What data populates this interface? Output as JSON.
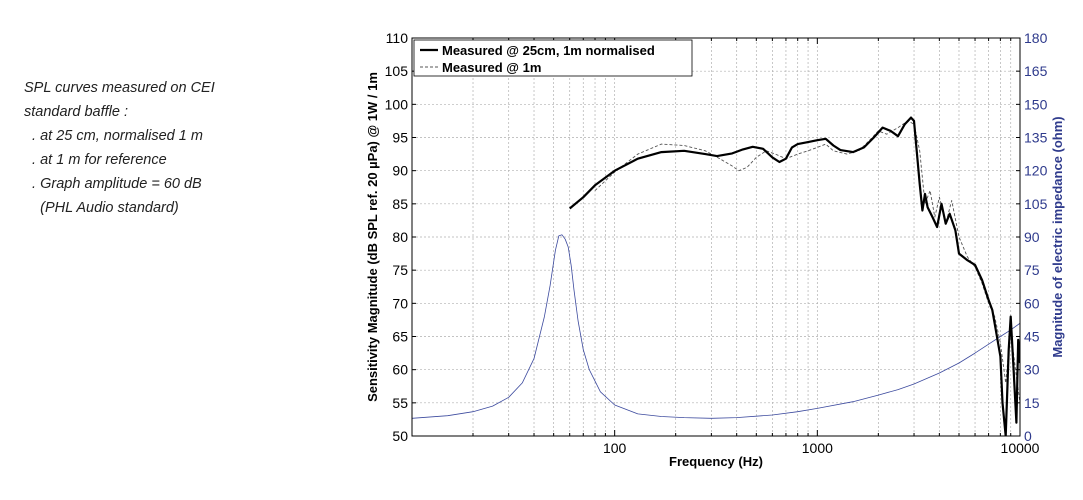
{
  "note": {
    "lines": [
      "SPL curves measured on CEI",
      "standard baffle :",
      "  . at 25 cm, normalised 1 m",
      "  . at 1 m for reference",
      "  . Graph amplitude = 60 dB",
      "    (PHL Audio standard)"
    ]
  },
  "chart_data": {
    "type": "line",
    "xlabel": "Frequency (Hz)",
    "ylabel": "Sensitivity Magnitude (dB SPL ref. 20 µPa) @ 1W / 1m",
    "ylabel_right": "Magnitude of electric impedance (ohm)",
    "x_scale": "log",
    "xlim": [
      10,
      10000
    ],
    "ylim": [
      50,
      110
    ],
    "ylim_right": [
      0,
      180
    ],
    "x_ticks": [
      "100",
      "1000",
      "10000"
    ],
    "y_ticks": [
      "50",
      "55",
      "60",
      "65",
      "70",
      "75",
      "80",
      "85",
      "90",
      "95",
      "100",
      "105",
      "110"
    ],
    "y_ticks_right": [
      "0",
      "15",
      "30",
      "45",
      "60",
      "75",
      "90",
      "105",
      "120",
      "135",
      "150",
      "165",
      "180"
    ],
    "grid": true,
    "legend_position": "top-left",
    "colors": {
      "measured_25cm": "#000000",
      "measured_1m": "#555555",
      "impedance": "#3c4a9e",
      "right_axis": "#2e3a8c"
    },
    "series": [
      {
        "name": "Measured @ 25cm, 1m normalised",
        "axis": "left",
        "style": "solid",
        "x": [
          60,
          70,
          80,
          100,
          130,
          170,
          220,
          280,
          320,
          380,
          430,
          480,
          540,
          600,
          650,
          700,
          750,
          800,
          900,
          1000,
          1100,
          1200,
          1300,
          1500,
          1700,
          1900,
          2100,
          2300,
          2500,
          2700,
          2900,
          3000,
          3200,
          3300,
          3400,
          3500,
          3700,
          3900,
          4100,
          4300,
          4500,
          4800,
          5000,
          5500,
          6000,
          6500,
          7000,
          7300,
          7600,
          8000,
          8200,
          8500,
          8800,
          9000,
          9300,
          9600,
          9800,
          10000
        ],
        "y": [
          84.3,
          86.0,
          87.8,
          90.0,
          91.8,
          92.8,
          93.0,
          92.5,
          92.2,
          92.6,
          93.2,
          93.6,
          93.3,
          92.0,
          91.3,
          91.8,
          93.5,
          94.0,
          94.3,
          94.6,
          94.8,
          93.8,
          93.1,
          92.8,
          93.5,
          95.0,
          96.5,
          96.0,
          95.2,
          97.0,
          98.0,
          97.5,
          88.0,
          84.0,
          86.5,
          84.5,
          83.0,
          81.5,
          85.0,
          82.0,
          83.5,
          81.0,
          77.5,
          76.5,
          75.8,
          73.5,
          70.5,
          69.0,
          66.0,
          62.0,
          55.0,
          50.0,
          63.0,
          68.0,
          60.0,
          52.0,
          64.5,
          61.0
        ]
      },
      {
        "name": "Measured @ 1m",
        "axis": "left",
        "style": "dashed",
        "x": [
          80,
          100,
          130,
          170,
          220,
          280,
          330,
          380,
          410,
          450,
          500,
          560,
          620,
          700,
          800,
          900,
          1000,
          1100,
          1200,
          1400,
          1600,
          1800,
          2000,
          2200,
          2500,
          2800,
          3000,
          3200,
          3400,
          3600,
          3800,
          4000,
          4300,
          4600,
          5000,
          5500,
          6000,
          6500,
          7000,
          7500,
          8000,
          8500,
          9000,
          9500,
          10000
        ],
        "y": [
          87.0,
          89.8,
          92.5,
          94.0,
          93.8,
          93.0,
          91.8,
          90.7,
          90.0,
          90.5,
          92.0,
          93.0,
          92.5,
          91.8,
          92.5,
          93.0,
          93.5,
          94.0,
          93.0,
          92.5,
          93.0,
          94.5,
          96.0,
          95.5,
          96.5,
          97.5,
          97.0,
          93.0,
          85.0,
          87.0,
          83.0,
          86.0,
          82.0,
          85.5,
          80.0,
          77.0,
          75.5,
          73.0,
          70.0,
          68.0,
          64.0,
          58.0,
          66.0,
          60.0,
          55.0
        ]
      },
      {
        "name": "Impedance",
        "axis": "right",
        "style": "solid",
        "x": [
          10,
          15,
          20,
          25,
          30,
          35,
          40,
          45,
          48,
          51,
          53,
          55,
          57,
          59,
          61,
          63,
          66,
          70,
          75,
          85,
          100,
          130,
          170,
          220,
          300,
          400,
          600,
          800,
          1000,
          1500,
          2000,
          2500,
          3000,
          4000,
          5000,
          6000,
          7000,
          8000,
          9000,
          10000
        ],
        "y": [
          8.0,
          9.2,
          11.0,
          13.5,
          17.5,
          24.0,
          35.0,
          54.0,
          68.0,
          84.0,
          90.5,
          91.0,
          89.0,
          85.5,
          77.0,
          66.0,
          52.0,
          39.0,
          30.0,
          20.0,
          14.0,
          10.0,
          8.8,
          8.3,
          8.0,
          8.3,
          9.5,
          11.0,
          12.5,
          15.5,
          18.5,
          21.0,
          23.5,
          28.5,
          33.0,
          37.5,
          41.5,
          45.0,
          48.0,
          51.0
        ]
      }
    ]
  }
}
